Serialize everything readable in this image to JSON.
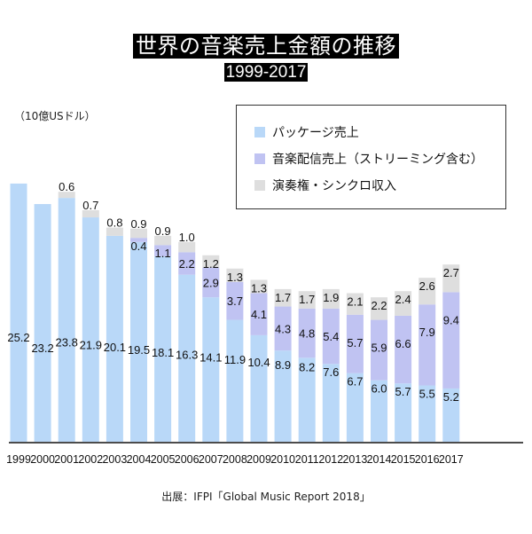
{
  "header": {
    "title": "世界の音楽売上金額の推移",
    "subtitle": "1999-2017"
  },
  "unit_label": "（10億USドル）",
  "source": "出展：IFPI「Global Music Report 2018」",
  "colors": {
    "package": "#b9d8f8",
    "digital": "#c0c3f2",
    "performance": "#dedede",
    "axis": "#111111"
  },
  "chart_data": {
    "type": "bar",
    "stacked": true,
    "title": "世界の音楽売上金額の推移",
    "subtitle": "1999-2017",
    "xlabel": "",
    "ylabel": "（10億USドル）",
    "ylim": [
      0,
      27
    ],
    "grid": false,
    "legend_position": "top-right",
    "categories": [
      "1999",
      "2000",
      "2001",
      "2002",
      "2003",
      "2004",
      "2005",
      "2006",
      "2007",
      "2008",
      "2009",
      "2010",
      "2011",
      "2012",
      "2013",
      "2014",
      "2015",
      "2016",
      "2017"
    ],
    "series": [
      {
        "name": "パッケージ売上",
        "key": "package",
        "values": [
          25.2,
          23.2,
          23.8,
          21.9,
          20.1,
          19.5,
          18.1,
          16.3,
          14.1,
          11.9,
          10.4,
          8.9,
          8.2,
          7.6,
          6.7,
          6.0,
          5.7,
          5.5,
          5.2
        ]
      },
      {
        "name": "音楽配信売上（ストリーミング含む）",
        "key": "digital",
        "values": [
          null,
          null,
          null,
          null,
          null,
          0.4,
          1.1,
          2.2,
          2.9,
          3.7,
          4.1,
          4.3,
          4.8,
          5.4,
          5.7,
          5.9,
          6.6,
          7.9,
          9.4
        ]
      },
      {
        "name": "演奏権・シンクロ収入",
        "key": "performance",
        "values": [
          null,
          null,
          0.6,
          0.7,
          0.8,
          0.9,
          0.9,
          1.0,
          1.2,
          1.3,
          1.3,
          1.7,
          1.7,
          1.9,
          2.1,
          2.2,
          2.4,
          2.6,
          2.7
        ]
      }
    ]
  }
}
